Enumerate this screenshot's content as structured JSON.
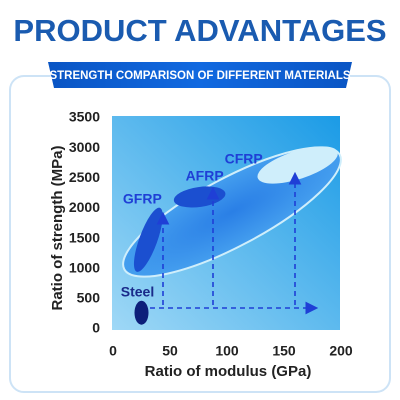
{
  "header": {
    "title": "PRODUCT ADVANTAGES",
    "subtitle": "STRENGTH COMPARISON OF DIFFERENT MATERIALS"
  },
  "chart_data": {
    "type": "region",
    "x_label": "Ratio of modulus (GPa)",
    "y_label": "Ratio of strength (MPa)",
    "xlim": [
      0,
      200
    ],
    "xticks": [
      0,
      50,
      100,
      150,
      200
    ],
    "ylim": [
      0,
      3500
    ],
    "yticks": [
      0,
      500,
      1000,
      1500,
      2000,
      2500,
      3000,
      3500
    ],
    "series": [
      {
        "name": "Steel",
        "x": 25,
        "y": 270,
        "color": "#0d1f7a"
      },
      {
        "name": "GFRP",
        "x": 31,
        "y": 1480,
        "color": "#1b4fd0"
      },
      {
        "name": "AFRP",
        "x": 76,
        "y": 2190,
        "color": "#1b4fd0"
      },
      {
        "name": "CFRP",
        "x": 162,
        "y": 2720,
        "color": "#cfeefb"
      }
    ]
  }
}
